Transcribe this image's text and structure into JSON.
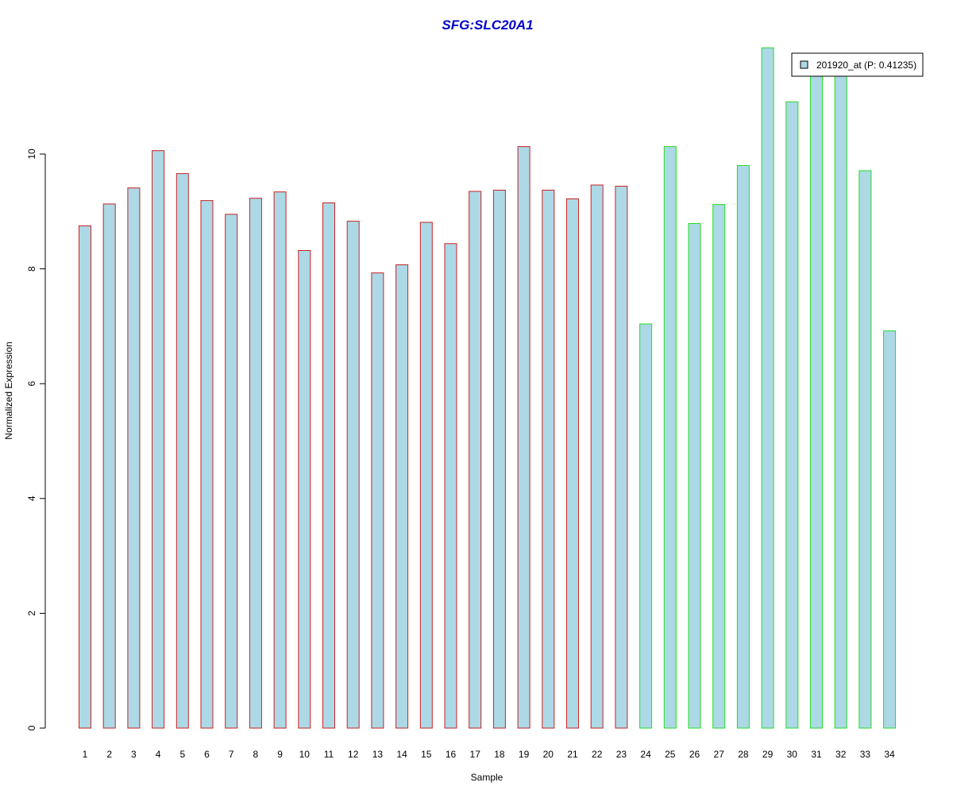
{
  "chart_data": {
    "type": "bar",
    "title": "SFG:SLC20A1",
    "xlabel": "Sample",
    "ylabel": "Normalized Expression",
    "categories": [
      "1",
      "2",
      "3",
      "4",
      "5",
      "6",
      "7",
      "8",
      "9",
      "10",
      "11",
      "12",
      "13",
      "14",
      "15",
      "16",
      "17",
      "18",
      "19",
      "20",
      "21",
      "22",
      "23",
      "24",
      "25",
      "26",
      "27",
      "28",
      "29",
      "30",
      "31",
      "32",
      "33",
      "34"
    ],
    "series": [
      {
        "name": "201920_at (P: 0.41235)",
        "values": [
          8.75,
          9.13,
          9.41,
          10.06,
          9.66,
          9.19,
          8.95,
          9.23,
          9.34,
          8.32,
          9.15,
          8.83,
          7.93,
          8.07,
          8.81,
          8.44,
          9.35,
          9.37,
          10.13,
          9.37,
          9.22,
          9.46,
          9.44,
          7.04,
          10.13,
          8.79,
          9.12,
          9.8,
          11.85,
          10.91,
          11.41,
          11.41,
          9.71,
          6.92
        ]
      }
    ],
    "group_border_colors": [
      "#cc2222",
      "#cc2222",
      "#cc2222",
      "#cc2222",
      "#cc2222",
      "#cc2222",
      "#cc2222",
      "#cc2222",
      "#cc2222",
      "#cc2222",
      "#cc2222",
      "#cc2222",
      "#cc2222",
      "#cc2222",
      "#cc2222",
      "#cc2222",
      "#cc2222",
      "#cc2222",
      "#cc2222",
      "#cc2222",
      "#cc2222",
      "#cc2222",
      "#cc2222",
      "#22dd22",
      "#22dd22",
      "#22dd22",
      "#22dd22",
      "#22dd22",
      "#22dd22",
      "#22dd22",
      "#22dd22",
      "#22dd22",
      "#22dd22",
      "#22dd22"
    ],
    "bar_fill": "#add8e6",
    "title_color": "#0000cc",
    "yticks": [
      0,
      2,
      4,
      6,
      8,
      10
    ],
    "ylim": [
      0,
      11.85
    ],
    "legend_position": "top-right",
    "grid": false
  }
}
